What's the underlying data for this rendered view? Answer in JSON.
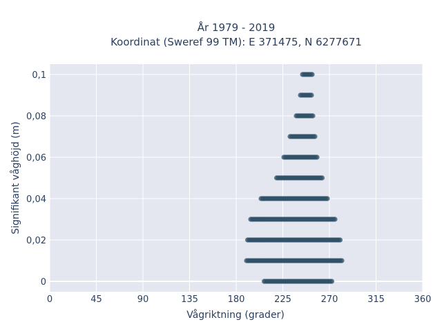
{
  "chart_data": {
    "type": "scatter",
    "title_line1": "År 1979 - 2019",
    "title_line2": "Koordinat (Sweref 99 TM): E 371475, N 6277671",
    "xlabel": "Vågriktning (grader)",
    "ylabel": "Signifikant våghöjd (m)",
    "xlim": [
      0,
      360
    ],
    "ylim": [
      -0.005,
      0.105
    ],
    "x_ticks": [
      0,
      45,
      90,
      135,
      180,
      225,
      270,
      315,
      360
    ],
    "x_tick_labels": [
      "0",
      "45",
      "90",
      "135",
      "180",
      "225",
      "270",
      "315",
      "360"
    ],
    "y_ticks": [
      0,
      0.02,
      0.04,
      0.06,
      0.08,
      0.1
    ],
    "y_tick_labels": [
      "0",
      "0,02",
      "0,04",
      "0,06",
      "0,08",
      "0,1"
    ],
    "grid": true,
    "legend": "none",
    "marker_color": "#2f5067",
    "background_color": "#e5e7f0",
    "series": [
      {
        "points": [
          {
            "y": 0.0,
            "x_min": 207,
            "x_max": 273
          },
          {
            "y": 0.01,
            "x_min": 190,
            "x_max": 283
          },
          {
            "y": 0.02,
            "x_min": 191,
            "x_max": 281
          },
          {
            "y": 0.03,
            "x_min": 194,
            "x_max": 276
          },
          {
            "y": 0.04,
            "x_min": 204,
            "x_max": 269
          },
          {
            "y": 0.05,
            "x_min": 219,
            "x_max": 263
          },
          {
            "y": 0.06,
            "x_min": 226,
            "x_max": 258
          },
          {
            "y": 0.07,
            "x_min": 232,
            "x_max": 256
          },
          {
            "y": 0.08,
            "x_min": 238,
            "x_max": 255
          },
          {
            "y": 0.09,
            "x_min": 242,
            "x_max": 254
          },
          {
            "y": 0.1,
            "x_min": 244,
            "x_max": 254
          }
        ]
      }
    ]
  }
}
